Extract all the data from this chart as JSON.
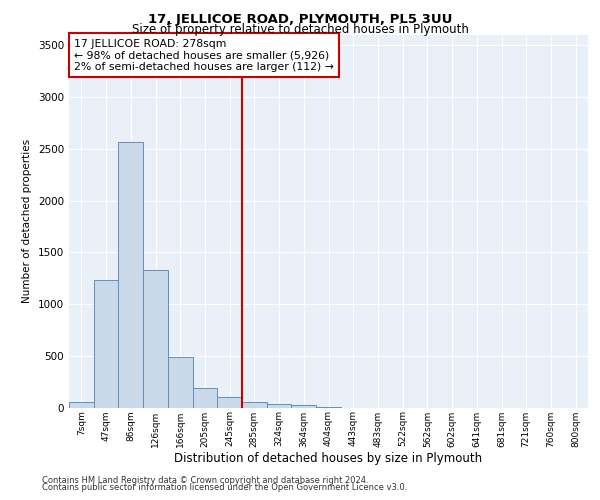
{
  "title1": "17, JELLICOE ROAD, PLYMOUTH, PL5 3UU",
  "title2": "Size of property relative to detached houses in Plymouth",
  "xlabel": "Distribution of detached houses by size in Plymouth",
  "ylabel": "Number of detached properties",
  "bin_labels": [
    "7sqm",
    "47sqm",
    "86sqm",
    "126sqm",
    "166sqm",
    "205sqm",
    "245sqm",
    "285sqm",
    "324sqm",
    "364sqm",
    "404sqm",
    "443sqm",
    "483sqm",
    "522sqm",
    "562sqm",
    "602sqm",
    "641sqm",
    "681sqm",
    "721sqm",
    "760sqm",
    "800sqm"
  ],
  "bar_values": [
    50,
    1230,
    2570,
    1330,
    490,
    185,
    100,
    55,
    35,
    20,
    5,
    0,
    0,
    0,
    0,
    0,
    0,
    0,
    0,
    0,
    0
  ],
  "bar_color": "#c9d9ea",
  "bar_edge_color": "#6090bb",
  "vline_x_index": 7,
  "vline_color": "#cc0000",
  "annotation_text": "17 JELLICOE ROAD: 278sqm\n← 98% of detached houses are smaller (5,926)\n2% of semi-detached houses are larger (112) →",
  "annotation_box_color": "#ffffff",
  "annotation_box_edge": "#cc0000",
  "ylim": [
    0,
    3600
  ],
  "yticks": [
    0,
    500,
    1000,
    1500,
    2000,
    2500,
    3000,
    3500
  ],
  "footer1": "Contains HM Land Registry data © Crown copyright and database right 2024.",
  "footer2": "Contains public sector information licensed under the Open Government Licence v3.0.",
  "plot_bg_color": "#eaf0f8",
  "title1_fontsize": 9.5,
  "title2_fontsize": 8.5
}
